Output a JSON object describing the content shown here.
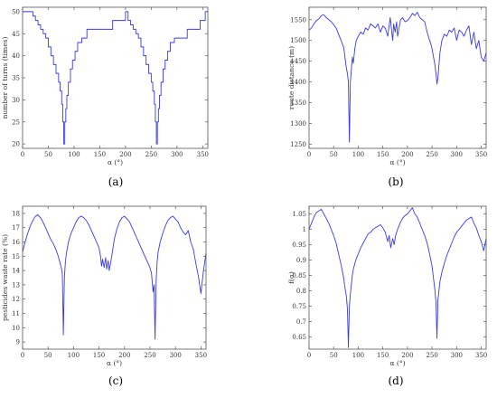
{
  "chart_data": [
    {
      "id": "a",
      "panel_label": "(a)",
      "type": "line",
      "xlabel": "α (°)",
      "ylabel": "number of turns (times)",
      "xlim": [
        0,
        360
      ],
      "ylim": [
        19,
        51
      ],
      "xticks": [
        0,
        50,
        100,
        150,
        200,
        250,
        300,
        350
      ],
      "yticks": [
        20,
        25,
        30,
        35,
        40,
        45,
        50
      ],
      "color": "#3a3ae8",
      "series": [
        {
          "x": [
            0,
            20,
            20,
            25,
            25,
            30,
            30,
            35,
            35,
            40,
            40,
            45,
            45,
            50,
            50,
            55,
            55,
            60,
            60,
            65,
            65,
            70,
            70,
            73,
            73,
            76,
            76,
            78,
            78,
            80,
            80,
            82,
            82,
            84,
            84,
            86,
            86,
            89,
            89,
            93,
            93,
            97,
            97,
            102,
            102,
            107,
            107,
            115,
            115,
            125,
            125,
            175,
            175,
            200,
            200,
            205,
            205,
            210,
            210,
            215,
            215,
            220,
            220,
            225,
            225,
            230,
            230,
            235,
            235,
            240,
            240,
            245,
            245,
            250,
            250,
            253,
            253,
            256,
            256,
            258,
            258,
            260,
            260,
            262,
            262,
            264,
            264,
            266,
            266,
            269,
            269,
            273,
            273,
            277,
            277,
            282,
            282,
            287,
            287,
            295,
            295,
            320,
            320,
            345,
            345,
            355,
            355,
            360
          ],
          "y": [
            50,
            50,
            49,
            49,
            48,
            48,
            47,
            47,
            46,
            46,
            45,
            45,
            44,
            44,
            42,
            42,
            40,
            40,
            38,
            38,
            36,
            36,
            34,
            34,
            32,
            32,
            29,
            29,
            25,
            25,
            20,
            20,
            25,
            25,
            28,
            28,
            31,
            31,
            34,
            34,
            37,
            37,
            39,
            39,
            41,
            41,
            43,
            43,
            44,
            44,
            46,
            46,
            48,
            48,
            50,
            50,
            48,
            48,
            47,
            47,
            46,
            46,
            45,
            45,
            44,
            44,
            42,
            42,
            40,
            40,
            38,
            38,
            36,
            36,
            34,
            34,
            32,
            32,
            29,
            29,
            25,
            25,
            20,
            20,
            25,
            25,
            28,
            28,
            31,
            31,
            34,
            34,
            37,
            37,
            39,
            39,
            41,
            41,
            43,
            43,
            44,
            44,
            46,
            46,
            48,
            48,
            50,
            50
          ]
        }
      ]
    },
    {
      "id": "b",
      "panel_label": "(b)",
      "type": "line",
      "xlabel": "α (°)",
      "ylabel": "route distance (m)",
      "xlim": [
        0,
        360
      ],
      "ylim": [
        1240,
        1580
      ],
      "xticks": [
        0,
        50,
        100,
        150,
        200,
        250,
        300,
        350
      ],
      "yticks": [
        1250,
        1300,
        1350,
        1400,
        1450,
        1500,
        1550
      ],
      "color": "#3a3ae8",
      "series": [
        {
          "x": [
            0,
            5,
            10,
            15,
            20,
            25,
            30,
            35,
            40,
            45,
            50,
            55,
            60,
            65,
            70,
            72,
            75,
            78,
            80,
            82,
            84,
            86,
            88,
            90,
            93,
            96,
            100,
            105,
            110,
            115,
            120,
            125,
            130,
            135,
            140,
            145,
            150,
            155,
            160,
            165,
            170,
            172,
            175,
            178,
            180,
            183,
            186,
            190,
            195,
            200,
            205,
            210,
            215,
            220,
            225,
            230,
            235,
            240,
            245,
            248,
            250,
            253,
            256,
            258,
            260,
            262,
            264,
            266,
            270,
            275,
            280,
            285,
            290,
            295,
            300,
            305,
            310,
            315,
            320,
            325,
            330,
            335,
            340,
            345,
            350,
            355,
            360
          ],
          "y": [
            1525,
            1530,
            1540,
            1548,
            1552,
            1560,
            1562,
            1555,
            1550,
            1545,
            1538,
            1530,
            1515,
            1500,
            1485,
            1470,
            1440,
            1420,
            1400,
            1255,
            1400,
            1430,
            1460,
            1445,
            1480,
            1500,
            1510,
            1520,
            1515,
            1530,
            1525,
            1540,
            1535,
            1530,
            1540,
            1520,
            1535,
            1530,
            1510,
            1555,
            1500,
            1540,
            1520,
            1545,
            1510,
            1530,
            1550,
            1555,
            1545,
            1548,
            1555,
            1565,
            1560,
            1568,
            1555,
            1550,
            1545,
            1520,
            1500,
            1490,
            1480,
            1460,
            1440,
            1420,
            1395,
            1410,
            1440,
            1470,
            1500,
            1515,
            1510,
            1525,
            1520,
            1530,
            1500,
            1525,
            1520,
            1510,
            1525,
            1535,
            1490,
            1520,
            1480,
            1500,
            1460,
            1450,
            1470
          ]
        }
      ]
    },
    {
      "id": "c",
      "panel_label": "(c)",
      "type": "line",
      "xlabel": "α (°)",
      "ylabel": "pesticides waste rate (%)",
      "xlim": [
        0,
        360
      ],
      "ylim": [
        8.5,
        18.5
      ],
      "xticks": [
        0,
        50,
        100,
        150,
        200,
        250,
        300,
        350
      ],
      "yticks": [
        9,
        10,
        11,
        12,
        13,
        14,
        15,
        16,
        17,
        18
      ],
      "color": "#3a3ae8",
      "series": [
        {
          "x": [
            0,
            5,
            10,
            15,
            20,
            25,
            30,
            35,
            40,
            45,
            50,
            55,
            60,
            65,
            70,
            73,
            76,
            78,
            80,
            82,
            84,
            86,
            88,
            90,
            95,
            100,
            105,
            110,
            115,
            120,
            125,
            130,
            135,
            140,
            145,
            150,
            153,
            155,
            157,
            160,
            163,
            165,
            168,
            170,
            175,
            180,
            185,
            190,
            195,
            200,
            205,
            210,
            215,
            220,
            225,
            230,
            235,
            240,
            245,
            250,
            253,
            256,
            258,
            260,
            262,
            264,
            266,
            270,
            275,
            280,
            285,
            290,
            295,
            300,
            305,
            310,
            315,
            320,
            325,
            330,
            335,
            340,
            345,
            350,
            355,
            360
          ],
          "y": [
            15.3,
            16.0,
            16.6,
            17.1,
            17.5,
            17.8,
            17.9,
            17.7,
            17.4,
            17.0,
            16.6,
            16.2,
            15.9,
            15.5,
            15.0,
            14.6,
            14.2,
            13.8,
            9.5,
            13.5,
            14.6,
            15.2,
            15.6,
            16.0,
            16.6,
            17.0,
            17.4,
            17.7,
            17.8,
            17.7,
            17.5,
            17.2,
            16.8,
            16.4,
            16.0,
            15.6,
            15.0,
            14.3,
            14.8,
            14.2,
            14.9,
            14.1,
            14.7,
            14.0,
            15.0,
            16.2,
            16.9,
            17.4,
            17.7,
            17.8,
            17.6,
            17.4,
            17.0,
            16.6,
            16.2,
            15.8,
            15.4,
            15.0,
            14.6,
            14.2,
            13.8,
            12.5,
            13.0,
            9.2,
            13.2,
            14.6,
            15.3,
            16.0,
            16.6,
            17.1,
            17.5,
            17.7,
            17.8,
            17.6,
            17.4,
            17.0,
            16.7,
            16.5,
            16.8,
            16.0,
            15.5,
            14.5,
            13.6,
            12.4,
            14.0,
            15.2
          ]
        }
      ]
    },
    {
      "id": "d",
      "panel_label": "(d)",
      "type": "line",
      "xlabel": "α (°)",
      "ylabel": "f(α)",
      "xlim": [
        0,
        360
      ],
      "ylim": [
        0.61,
        1.075
      ],
      "xticks": [
        0,
        50,
        100,
        150,
        200,
        250,
        300,
        350
      ],
      "yticks": [
        0.65,
        0.7,
        0.75,
        0.8,
        0.85,
        0.9,
        0.95,
        1,
        1.05
      ],
      "color": "#3a3ae8",
      "series": [
        {
          "x": [
            0,
            5,
            10,
            15,
            20,
            25,
            30,
            35,
            40,
            45,
            50,
            55,
            60,
            65,
            70,
            73,
            76,
            78,
            80,
            82,
            84,
            86,
            88,
            90,
            95,
            100,
            105,
            110,
            115,
            120,
            125,
            130,
            135,
            140,
            145,
            150,
            155,
            160,
            163,
            166,
            170,
            173,
            176,
            180,
            185,
            190,
            195,
            200,
            205,
            210,
            215,
            220,
            225,
            230,
            235,
            240,
            245,
            250,
            253,
            256,
            258,
            260,
            262,
            264,
            266,
            270,
            275,
            280,
            285,
            290,
            295,
            300,
            305,
            310,
            315,
            320,
            325,
            330,
            335,
            340,
            345,
            350,
            355,
            360
          ],
          "y": [
            1.0,
            1.02,
            1.04,
            1.055,
            1.06,
            1.065,
            1.05,
            1.035,
            1.02,
            1.0,
            0.98,
            0.955,
            0.92,
            0.885,
            0.845,
            0.81,
            0.78,
            0.74,
            0.615,
            0.75,
            0.79,
            0.82,
            0.85,
            0.87,
            0.9,
            0.92,
            0.94,
            0.955,
            0.97,
            0.985,
            0.99,
            1.0,
            1.005,
            1.01,
            1.015,
            1.005,
            0.99,
            0.96,
            0.98,
            0.94,
            0.97,
            0.95,
            0.98,
            1.0,
            1.02,
            1.035,
            1.045,
            1.05,
            1.06,
            1.07,
            1.05,
            1.04,
            1.02,
            1.0,
            0.98,
            0.955,
            0.92,
            0.88,
            0.84,
            0.8,
            0.76,
            0.645,
            0.77,
            0.8,
            0.83,
            0.86,
            0.89,
            0.915,
            0.935,
            0.955,
            0.975,
            0.99,
            1.0,
            1.01,
            1.02,
            1.03,
            1.035,
            1.04,
            1.02,
            1.005,
            0.98,
            0.96,
            0.93,
            0.97
          ]
        }
      ]
    }
  ]
}
